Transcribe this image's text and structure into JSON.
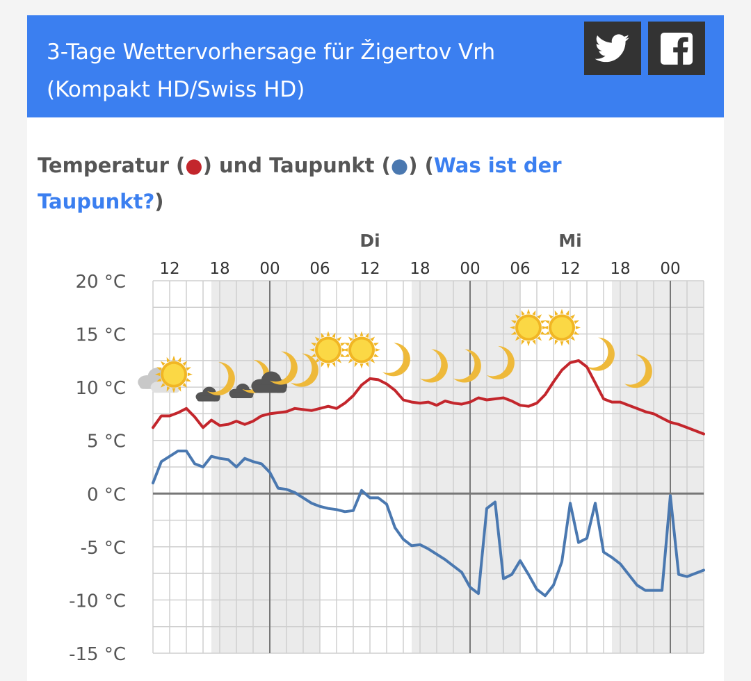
{
  "header": {
    "title_line1": "3-Tage Wettervorhersage für Žigertov Vrh",
    "title_line2": "(Kompakt HD/Swiss HD)",
    "color": "#3b7ff0"
  },
  "social": [
    {
      "name": "twitter",
      "icon": "twitter-icon"
    },
    {
      "name": "facebook",
      "icon": "facebook-icon"
    }
  ],
  "section": {
    "title_part1": "Temperatur (",
    "dot1": "●",
    "title_part2": ") und Taupunkt (",
    "dot2": "●",
    "title_part3": ") (",
    "link_text": "Was ist der Taupunkt?",
    "title_part4": ")"
  },
  "chart_data": {
    "type": "line",
    "day_labels": [
      {
        "label": "Di",
        "at_hour": 36
      },
      {
        "label": "Mi",
        "at_hour": 60
      }
    ],
    "x_tick_labels": [
      "12",
      "18",
      "00",
      "06",
      "12",
      "18",
      "00",
      "06",
      "12",
      "18",
      "00"
    ],
    "y_tick_labels": [
      "20 °C",
      "15 °C",
      "10 °C",
      "5 °C",
      "0 °C",
      "-5 °C",
      "-10 °C",
      "-15 °C"
    ],
    "y_ticks": [
      20,
      15,
      10,
      5,
      0,
      -5,
      -10,
      -15
    ],
    "ylim": [
      -15,
      20
    ],
    "xlim_hours": [
      10,
      76
    ],
    "grid": true,
    "series": [
      {
        "color": "#c3262c",
        "x_hours": [
          10,
          11,
          12,
          13,
          14,
          15,
          16,
          17,
          18,
          19,
          20,
          21,
          22,
          23,
          24,
          25,
          26,
          27,
          28,
          29,
          30,
          31,
          32,
          33,
          34,
          35,
          36,
          37,
          38,
          39,
          40,
          41,
          42,
          43,
          44,
          45,
          46,
          47,
          48,
          49,
          50,
          51,
          52,
          53,
          54,
          55,
          56,
          57,
          58,
          59,
          60,
          61,
          62,
          63,
          64,
          65,
          66,
          67,
          68,
          69,
          70,
          71,
          72,
          73,
          74,
          75,
          76
        ],
        "values": [
          6.2,
          7.3,
          7.3,
          7.6,
          8.0,
          7.2,
          6.2,
          6.9,
          6.4,
          6.5,
          6.8,
          6.5,
          6.8,
          7.3,
          7.5,
          7.6,
          7.7,
          8.0,
          7.9,
          7.8,
          8.0,
          8.2,
          8.0,
          8.5,
          9.2,
          10.2,
          10.8,
          10.7,
          10.3,
          9.7,
          8.8,
          8.6,
          8.5,
          8.6,
          8.3,
          8.7,
          8.5,
          8.4,
          8.6,
          9.0,
          8.8,
          8.9,
          9.0,
          8.7,
          8.3,
          8.2,
          8.5,
          9.3,
          10.5,
          11.6,
          12.3,
          12.5,
          11.9,
          10.4,
          8.9,
          8.6,
          8.6,
          8.3,
          8.0,
          7.7,
          7.5,
          7.1,
          6.7,
          6.5,
          6.2,
          5.9,
          5.6
        ]
      },
      {
        "color": "#4a78b0",
        "x_hours": [
          10,
          11,
          12,
          13,
          14,
          15,
          16,
          17,
          18,
          19,
          20,
          21,
          22,
          23,
          24,
          25,
          26,
          27,
          28,
          29,
          30,
          31,
          32,
          33,
          34,
          35,
          36,
          37,
          38,
          39,
          40,
          41,
          42,
          43,
          44,
          45,
          46,
          47,
          48,
          49,
          50,
          51,
          52,
          53,
          54,
          55,
          56,
          57,
          58,
          59,
          60,
          61,
          62,
          63,
          64,
          65,
          66,
          67,
          68,
          69,
          70,
          71,
          72,
          73,
          74,
          75,
          76
        ],
        "values": [
          1.0,
          3.0,
          3.5,
          4.0,
          4.0,
          2.8,
          2.5,
          3.5,
          3.3,
          3.2,
          2.5,
          3.3,
          3.0,
          2.8,
          2.0,
          0.5,
          0.4,
          0.1,
          -0.4,
          -0.9,
          -1.2,
          -1.4,
          -1.5,
          -1.7,
          -1.6,
          0.3,
          -0.4,
          -0.4,
          -1.0,
          -3.2,
          -4.3,
          -4.9,
          -4.8,
          -5.2,
          -5.7,
          -6.2,
          -6.8,
          -7.4,
          -8.8,
          -9.4,
          -1.4,
          -0.8,
          -8.0,
          -7.6,
          -6.3,
          -7.6,
          -9.0,
          -9.6,
          -8.6,
          -6.4,
          -0.9,
          -4.6,
          -4.2,
          -0.9,
          -5.5,
          -6.0,
          -6.6,
          -7.6,
          -8.6,
          -9.1,
          -9.1,
          -9.1,
          -0.2,
          -7.6,
          -7.8,
          -7.5,
          -7.2
        ]
      }
    ],
    "weather_icons": [
      {
        "type": "cloudy",
        "at_hour": 10.2,
        "temp": 10.5
      },
      {
        "type": "sun",
        "at_hour": 12.5,
        "temp": 11.2
      },
      {
        "type": "small-cloud",
        "at_hour": 16.5,
        "temp": 9.3
      },
      {
        "type": "moon",
        "at_hour": 18.0,
        "temp": 10.8
      },
      {
        "type": "small-cloud",
        "at_hour": 20.5,
        "temp": 9.6
      },
      {
        "type": "moon",
        "at_hour": 22.2,
        "temp": 11.0
      },
      {
        "type": "cloud-dark",
        "at_hour": 23.8,
        "temp": 10.4
      },
      {
        "type": "moon",
        "at_hour": 25.5,
        "temp": 11.8
      },
      {
        "type": "moon",
        "at_hour": 28.0,
        "temp": 11.6
      },
      {
        "type": "sun",
        "at_hour": 31.0,
        "temp": 13.5
      },
      {
        "type": "sun",
        "at_hour": 35.0,
        "temp": 13.5
      },
      {
        "type": "moon",
        "at_hour": 39.0,
        "temp": 12.6
      },
      {
        "type": "moon",
        "at_hour": 43.5,
        "temp": 12.0
      },
      {
        "type": "moon",
        "at_hour": 47.5,
        "temp": 12.0
      },
      {
        "type": "moon",
        "at_hour": 51.5,
        "temp": 12.3
      },
      {
        "type": "sun",
        "at_hour": 55.0,
        "temp": 15.6
      },
      {
        "type": "sun",
        "at_hour": 59.0,
        "temp": 15.6
      },
      {
        "type": "moon",
        "at_hour": 63.5,
        "temp": 13.1
      },
      {
        "type": "moon",
        "at_hour": 68.0,
        "temp": 11.5
      }
    ],
    "night_shading": [
      [
        17,
        30
      ],
      [
        41,
        54
      ],
      [
        65,
        76
      ]
    ]
  }
}
